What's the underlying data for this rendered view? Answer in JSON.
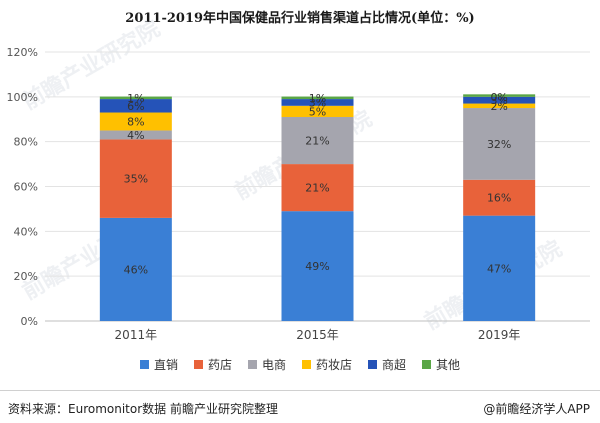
{
  "chart_data": {
    "type": "bar",
    "stacked": true,
    "title": "2011-2019年中国保健品行业销售渠道占比情况(单位：%)",
    "categories": [
      "2011年",
      "2015年",
      "2019年"
    ],
    "ylim": [
      0,
      120
    ],
    "yticks": [
      "0%",
      "20%",
      "40%",
      "60%",
      "80%",
      "100%",
      "120%"
    ],
    "grid": true,
    "legend_position": "bottom",
    "series": [
      {
        "name": "直销",
        "color": "#3a7fd5",
        "values": [
          46,
          49,
          47
        ],
        "labels": [
          "46%",
          "49%",
          "47%"
        ]
      },
      {
        "name": "药店",
        "color": "#e8623a",
        "values": [
          35,
          21,
          16
        ],
        "labels": [
          "35%",
          "21%",
          "16%"
        ]
      },
      {
        "name": "电商",
        "color": "#a5a5ae",
        "values": [
          4,
          21,
          32
        ],
        "labels": [
          "4%",
          "21%",
          "32%"
        ]
      },
      {
        "name": "药妆店",
        "color": "#ffc000",
        "values": [
          8,
          5,
          2
        ],
        "labels": [
          "8%",
          "5%",
          "2%"
        ]
      },
      {
        "name": "商超",
        "color": "#2553b8",
        "values": [
          6,
          3,
          3
        ],
        "labels": [
          "6%",
          "3%",
          "3%"
        ]
      },
      {
        "name": "其他",
        "color": "#5aa646",
        "values": [
          1,
          1,
          0
        ],
        "labels": [
          "1%",
          "1%",
          "0%"
        ]
      }
    ]
  },
  "footer": {
    "source": "资料来源：Euromonitor数据 前瞻产业研究院整理",
    "brand": "@前瞻经济学人APP"
  },
  "watermark": "前瞻产业研究院"
}
